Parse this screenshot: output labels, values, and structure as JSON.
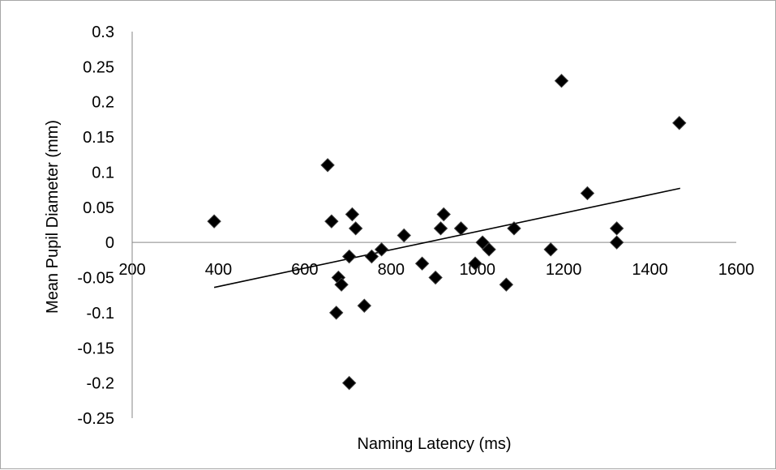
{
  "chart_data": {
    "type": "scatter",
    "title": "",
    "xlabel": "Naming Latency (ms)",
    "ylabel": "Mean Pupil Diameter (mm)",
    "xlim": [
      200,
      1600
    ],
    "ylim": [
      -0.25,
      0.3
    ],
    "x_ticks": [
      200,
      400,
      600,
      800,
      1000,
      1200,
      1400,
      1600
    ],
    "y_ticks": [
      0.3,
      0.25,
      0.2,
      0.15,
      0.1,
      0.05,
      0,
      -0.05,
      -0.1,
      -0.15,
      -0.2,
      -0.25
    ],
    "x_tick_labels": [
      "200",
      "400",
      "600",
      "800",
      "1000",
      "1200",
      "1400",
      "1600"
    ],
    "y_tick_labels": [
      "0.3",
      "0.25",
      "0.2",
      "0.15",
      "0.1",
      "0.05",
      "0",
      "-0.05",
      "-0.1",
      "-0.15",
      "-0.2",
      "-0.25"
    ],
    "grid": false,
    "legend": "none",
    "marker": "diamond",
    "marker_color": "#000000",
    "points": [
      {
        "x": 390,
        "y": 0.03
      },
      {
        "x": 653,
        "y": 0.11
      },
      {
        "x": 662,
        "y": 0.03
      },
      {
        "x": 673,
        "y": -0.1
      },
      {
        "x": 678,
        "y": -0.05
      },
      {
        "x": 685,
        "y": -0.06
      },
      {
        "x": 703,
        "y": -0.02
      },
      {
        "x": 703,
        "y": -0.2
      },
      {
        "x": 710,
        "y": 0.04
      },
      {
        "x": 718,
        "y": 0.02
      },
      {
        "x": 738,
        "y": -0.09
      },
      {
        "x": 755,
        "y": -0.02
      },
      {
        "x": 778,
        "y": -0.01
      },
      {
        "x": 830,
        "y": 0.01
      },
      {
        "x": 872,
        "y": -0.03
      },
      {
        "x": 903,
        "y": -0.05
      },
      {
        "x": 915,
        "y": 0.02
      },
      {
        "x": 922,
        "y": 0.04
      },
      {
        "x": 962,
        "y": 0.02
      },
      {
        "x": 995,
        "y": -0.03
      },
      {
        "x": 1012,
        "y": 0.0
      },
      {
        "x": 1027,
        "y": -0.01
      },
      {
        "x": 1067,
        "y": -0.06
      },
      {
        "x": 1085,
        "y": 0.02
      },
      {
        "x": 1170,
        "y": -0.01
      },
      {
        "x": 1195,
        "y": 0.23
      },
      {
        "x": 1255,
        "y": 0.07
      },
      {
        "x": 1323,
        "y": 0.02
      },
      {
        "x": 1323,
        "y": 0.0
      },
      {
        "x": 1468,
        "y": 0.17
      }
    ],
    "trendline": {
      "type": "linear",
      "x": [
        390,
        1470
      ],
      "y": [
        -0.064,
        0.077
      ],
      "color": "#000000"
    }
  }
}
